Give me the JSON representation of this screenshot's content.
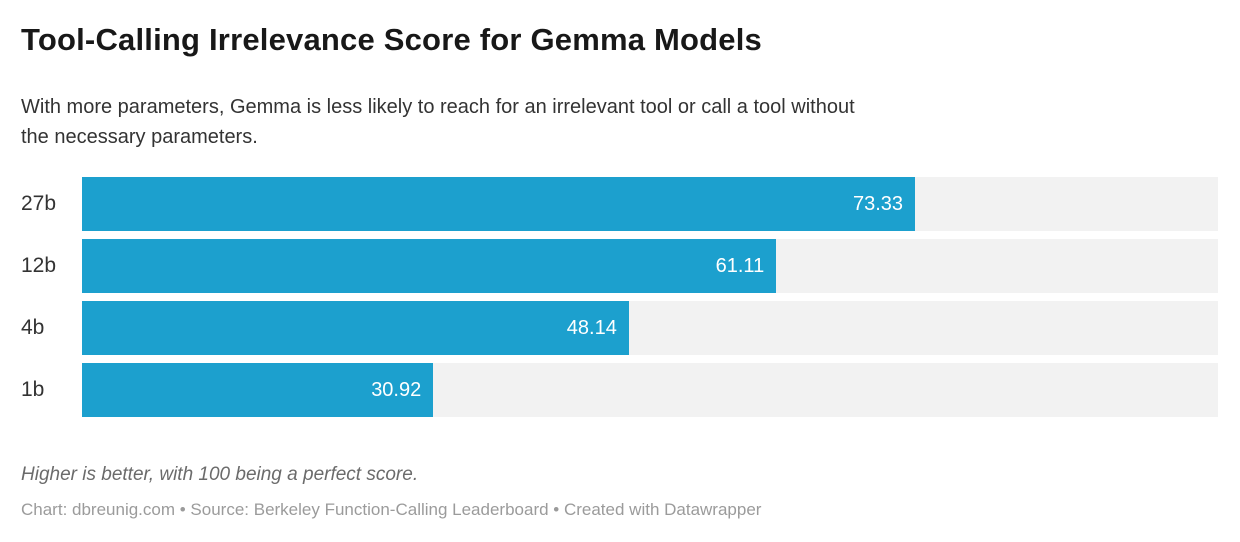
{
  "header": {
    "title": "Tool-Calling Irrelevance Score for Gemma Models",
    "subtitle_lines": [
      "With more parameters, Gemma is less likely to reach for an irrelevant tool or call a tool without",
      "the necessary parameters."
    ]
  },
  "footer": {
    "note": "Higher is better, with 100 being a perfect score.",
    "attribution": "Chart: dbreunig.com • Source: Berkeley Function-Calling Leaderboard • Created with Datawrapper"
  },
  "colors": {
    "bar": "#1CA0CE",
    "track": "#F2F2F2",
    "value_label": "#FFFFFF",
    "category_label": "#333333"
  },
  "chart_data": {
    "type": "bar",
    "orientation": "horizontal",
    "title": "Tool-Calling Irrelevance Score for Gemma Models",
    "subtitle": "With more parameters, Gemma is less likely to reach for an irrelevant tool or call a tool without the necessary parameters.",
    "categories": [
      "27b",
      "12b",
      "4b",
      "1b"
    ],
    "values": [
      73.33,
      61.11,
      48.14,
      30.92
    ],
    "value_labels": [
      "73.33",
      "61.11",
      "48.14",
      "30.92"
    ],
    "xlabel": "",
    "ylabel": "",
    "xlim": [
      0,
      100
    ],
    "grid": false,
    "legend": false,
    "value_labels_position": "inside-end",
    "note": "Higher is better, with 100 being a perfect score.",
    "source": "Berkeley Function-Calling Leaderboard"
  }
}
